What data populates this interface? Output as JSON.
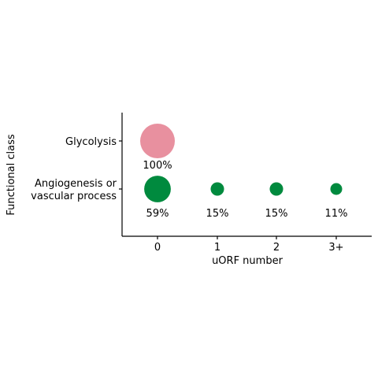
{
  "chart_data": {
    "type": "scatter",
    "xlabel": "uORF number",
    "ylabel": "Functional class",
    "x_categories": [
      "0",
      "1",
      "2",
      "3+"
    ],
    "y_categories": [
      "Glycolysis",
      [
        "Angiogenesis or",
        "vascular process"
      ]
    ],
    "colors": {
      "Glycolysis": "#e8909f",
      "Angiogenesis or vascular process": "#008a3e"
    },
    "points": [
      {
        "x": "0",
        "y": "Glycolysis",
        "value": 100,
        "label": "100%"
      },
      {
        "x": "0",
        "y": "Angiogenesis or vascular process",
        "value": 59,
        "label": "59%"
      },
      {
        "x": "1",
        "y": "Angiogenesis or vascular process",
        "value": 15,
        "label": "15%"
      },
      {
        "x": "2",
        "y": "Angiogenesis or vascular process",
        "value": 15,
        "label": "15%"
      },
      {
        "x": "3+",
        "y": "Angiogenesis or vascular process",
        "value": 11,
        "label": "11%"
      }
    ]
  }
}
